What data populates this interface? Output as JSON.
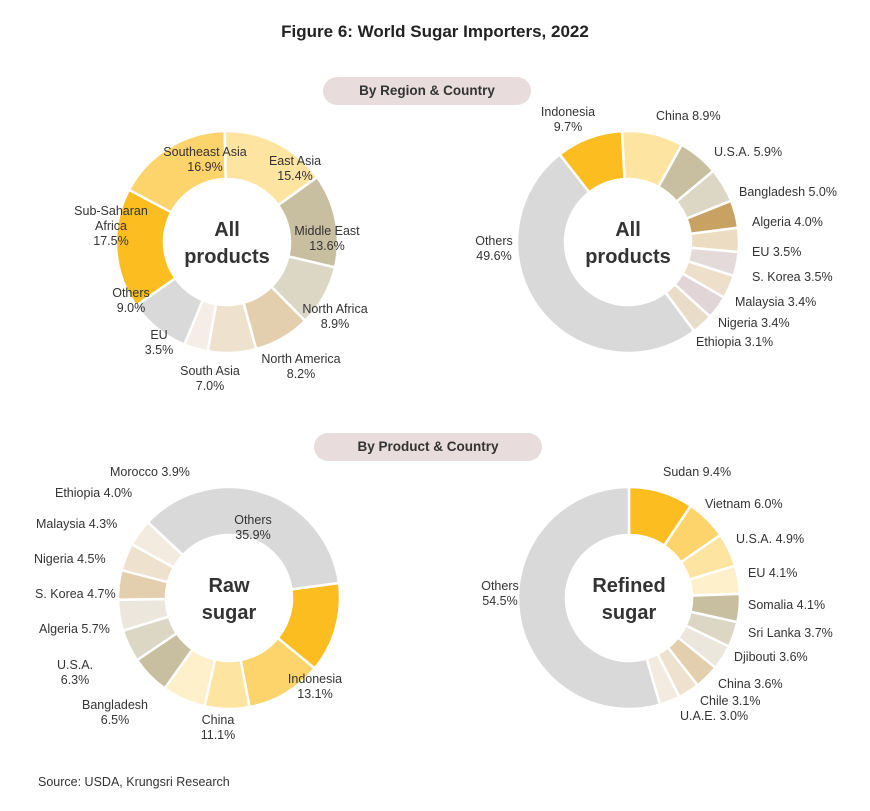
{
  "title": "Figure 6: World Sugar Importers, 2022",
  "sections": {
    "region": "By Region & Country",
    "product": "By Product & Country"
  },
  "source": "Source: USDA, Krungsri Research",
  "chart_data": [
    {
      "type": "pie",
      "center_label": [
        "All",
        "products"
      ],
      "slices": [
        {
          "label": "Southeast Asia",
          "value": 16.9,
          "color": "#fdd36b",
          "text": [
            "Southeast Asia",
            "16.9%"
          ]
        },
        {
          "label": "East Asia",
          "value": 15.4,
          "color": "#fde4a0",
          "text": [
            "East Asia",
            "15.4%"
          ]
        },
        {
          "label": "Middle East",
          "value": 13.6,
          "color": "#c8bea0",
          "text": [
            "Middle East",
            "13.6%"
          ]
        },
        {
          "label": "North Africa",
          "value": 8.9,
          "color": "#dcd7c4",
          "text": [
            "North Africa",
            "8.9%"
          ]
        },
        {
          "label": "North America",
          "value": 8.2,
          "color": "#e3cfad",
          "text": [
            "North America",
            "8.2%"
          ]
        },
        {
          "label": "South Asia",
          "value": 7.0,
          "color": "#eee1cd",
          "text": [
            "South Asia",
            "7.0%"
          ]
        },
        {
          "label": "EU",
          "value": 3.5,
          "color": "#f5ede6",
          "text": [
            "EU",
            "3.5%"
          ]
        },
        {
          "label": "Others",
          "value": 9.0,
          "color": "#d9d9d9",
          "text": [
            "Others",
            "9.0%"
          ]
        },
        {
          "label": "Sub-Saharan Africa",
          "value": 17.5,
          "color": "#fbbd1f",
          "text": [
            "Sub-Saharan",
            "Africa",
            "17.5%"
          ]
        }
      ]
    },
    {
      "type": "pie",
      "center_label": [
        "All",
        "products"
      ],
      "slices": [
        {
          "label": "Indonesia",
          "value": 9.7,
          "color": "#fbbd1f",
          "text": [
            "Indonesia",
            "9.7%"
          ]
        },
        {
          "label": "China",
          "value": 8.9,
          "color": "#fde4a0",
          "text": [
            "China 8.9%"
          ]
        },
        {
          "label": "U.S.A.",
          "value": 5.9,
          "color": "#c8bea0",
          "text": [
            "U.S.A. 5.9%"
          ]
        },
        {
          "label": "Bangladesh",
          "value": 5.0,
          "color": "#dcd7c4",
          "text": [
            "Bangladesh 5.0%"
          ]
        },
        {
          "label": "Algeria",
          "value": 4.0,
          "color": "#c8a262",
          "text": [
            "Algeria 4.0%"
          ]
        },
        {
          "label": "EU",
          "value": 3.5,
          "color": "#ebdcc2",
          "text": [
            "EU 3.5%"
          ]
        },
        {
          "label": "S. Korea",
          "value": 3.5,
          "color": "#e4dada",
          "text": [
            "S. Korea 3.5%"
          ]
        },
        {
          "label": "Malaysia",
          "value": 3.4,
          "color": "#eedfcb",
          "text": [
            "Malaysia 3.4%"
          ]
        },
        {
          "label": "Nigeria",
          "value": 3.4,
          "color": "#e2d5d8",
          "text": [
            "Nigeria 3.4%"
          ]
        },
        {
          "label": "Ethiopia",
          "value": 3.1,
          "color": "#e9dcc8",
          "text": [
            "Ethiopia 3.1%"
          ]
        },
        {
          "label": "Others",
          "value": 49.6,
          "color": "#d9d9d9",
          "text": [
            "Others",
            "49.6%"
          ]
        }
      ]
    },
    {
      "type": "pie",
      "center_label": [
        "Raw",
        "sugar"
      ],
      "slices": [
        {
          "label": "Others",
          "value": 35.9,
          "color": "#d9d9d9",
          "text": [
            "Others",
            "35.9%"
          ]
        },
        {
          "label": "Indonesia",
          "value": 13.1,
          "color": "#fbbd1f",
          "text": [
            "Indonesia",
            "13.1%"
          ]
        },
        {
          "label": "China",
          "value": 11.1,
          "color": "#fdd36b",
          "text": [
            "China",
            "11.1%"
          ]
        },
        {
          "label": "Bangladesh",
          "value": 6.5,
          "color": "#fde4a0",
          "text": [
            "Bangladesh",
            "6.5%"
          ]
        },
        {
          "label": "U.S.A.",
          "value": 6.3,
          "color": "#fff0cc",
          "text": [
            "U.S.A.",
            "6.3%"
          ]
        },
        {
          "label": "Algeria",
          "value": 5.7,
          "color": "#c8bea0",
          "text": [
            "Algeria 5.7%"
          ]
        },
        {
          "label": "S. Korea",
          "value": 4.7,
          "color": "#dcd7c4",
          "text": [
            "S. Korea 4.7%"
          ]
        },
        {
          "label": "Nigeria",
          "value": 4.5,
          "color": "#ebe7dd",
          "text": [
            "Nigeria  4.5%"
          ]
        },
        {
          "label": "Malaysia",
          "value": 4.3,
          "color": "#e3cfad",
          "text": [
            "Malaysia 4.3%"
          ]
        },
        {
          "label": "Ethiopia",
          "value": 4.0,
          "color": "#eee1cd",
          "text": [
            "Ethiopia 4.0%"
          ]
        },
        {
          "label": "Morocco",
          "value": 3.9,
          "color": "#f3ebe0",
          "text": [
            "Morocco 3.9%"
          ]
        }
      ]
    },
    {
      "type": "pie",
      "center_label": [
        "Refined",
        "sugar"
      ],
      "slices": [
        {
          "label": "Sudan",
          "value": 9.4,
          "color": "#fbbd1f",
          "text": [
            "Sudan 9.4%"
          ]
        },
        {
          "label": "Vietnam",
          "value": 6.0,
          "color": "#fdd36b",
          "text": [
            "Vietnam 6.0%"
          ]
        },
        {
          "label": "U.S.A.",
          "value": 4.9,
          "color": "#fde4a0",
          "text": [
            "U.S.A. 4.9%"
          ]
        },
        {
          "label": "EU",
          "value": 4.1,
          "color": "#fff0cc",
          "text": [
            "EU 4.1%"
          ]
        },
        {
          "label": "Somalia",
          "value": 4.1,
          "color": "#c8bea0",
          "text": [
            "Somalia 4.1%"
          ]
        },
        {
          "label": "Sri Lanka",
          "value": 3.7,
          "color": "#dcd7c4",
          "text": [
            "Sri Lanka 3.7%"
          ]
        },
        {
          "label": "Djibouti",
          "value": 3.6,
          "color": "#ebe7dd",
          "text": [
            "Djibouti 3.6%"
          ]
        },
        {
          "label": "China",
          "value": 3.6,
          "color": "#e3cfad",
          "text": [
            "China 3.6%"
          ]
        },
        {
          "label": "Chile",
          "value": 3.1,
          "color": "#eee1cd",
          "text": [
            "Chile 3.1%"
          ]
        },
        {
          "label": "U.A.E.",
          "value": 3.0,
          "color": "#f3ebe0",
          "text": [
            "U.A.E. 3.0%"
          ]
        },
        {
          "label": "Others",
          "value": 54.5,
          "color": "#d9d9d9",
          "text": [
            "Others",
            "54.5%"
          ]
        }
      ]
    }
  ]
}
